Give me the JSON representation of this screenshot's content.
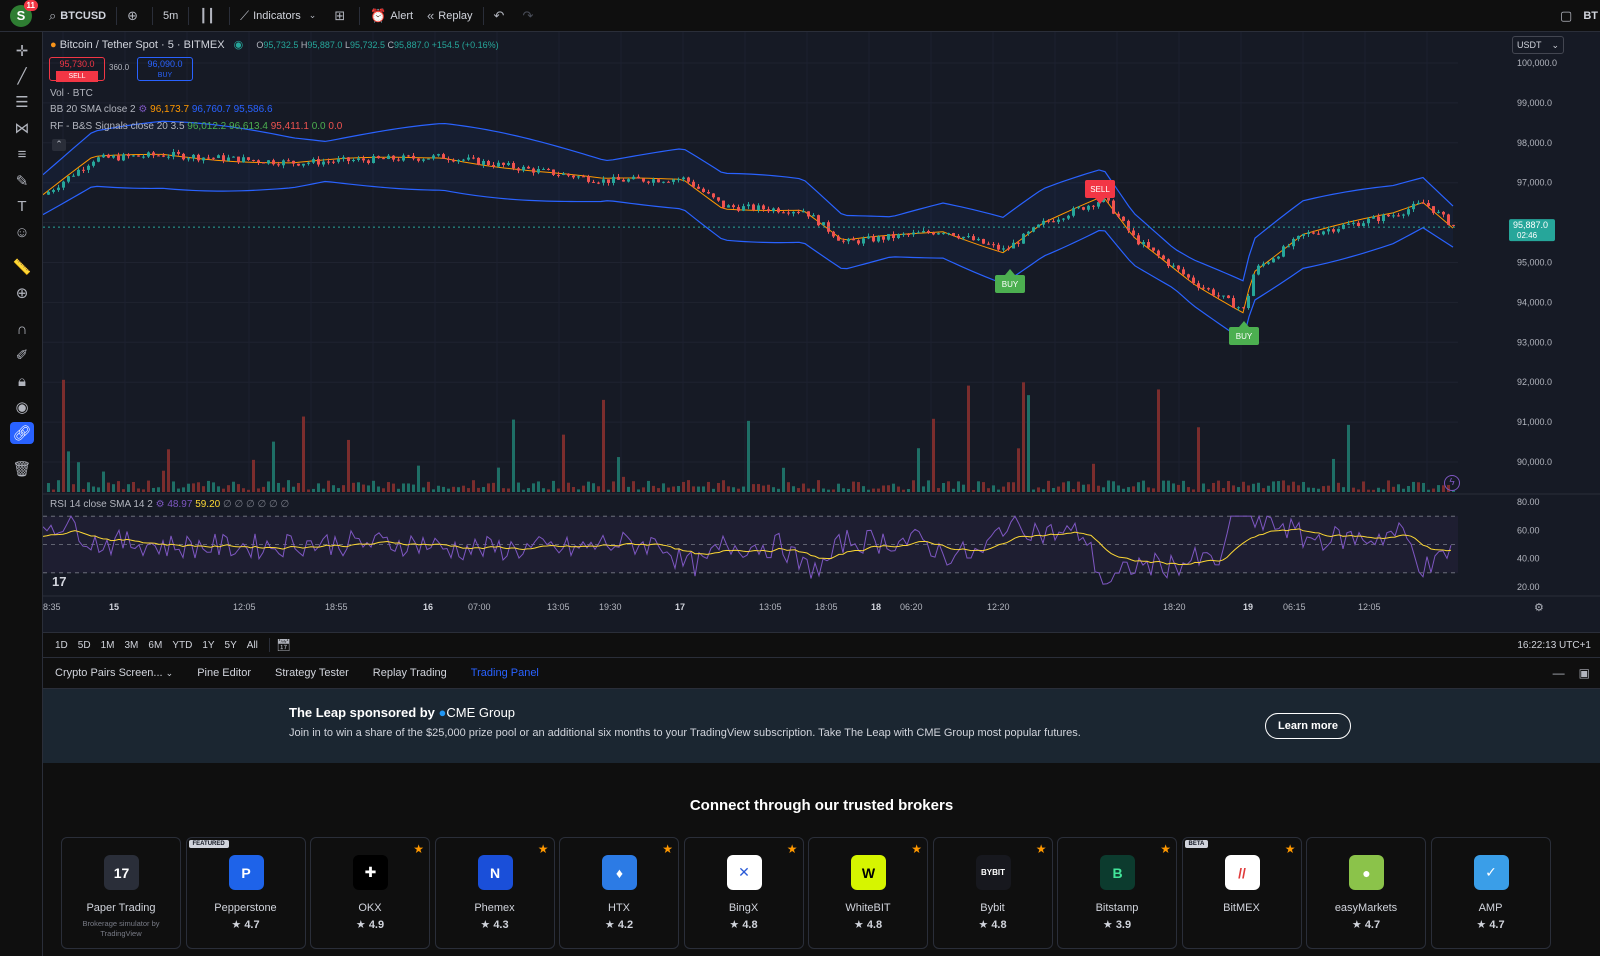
{
  "topbar": {
    "avatar_letter": "S",
    "notif_count": "11",
    "symbol": "BTCUSD",
    "interval": "5m",
    "indicators": "Indicators",
    "alert": "Alert",
    "replay": "Replay",
    "right_text": "BT"
  },
  "legend": {
    "title": "Bitcoin / Tether Spot · 5 · BITMEX",
    "o_label": "O",
    "o_val": "95,732.5",
    "h_label": "H",
    "h_val": "95,887.0",
    "l_label": "L",
    "l_val": "95,732.5",
    "c_label": "C",
    "c_val": "95,887.0",
    "change": "+154.5 (+0.16%)",
    "sell_price": "95,730.0",
    "sell_label": "SELL",
    "spread": "360.0",
    "buy_price": "96,090.0",
    "buy_label": "BUY",
    "vol": "Vol · BTC",
    "bb_label": "BB 20 SMA close 2",
    "bb_v1": "96,173.7",
    "bb_v2": "96,760.7",
    "bb_v3": "95,586.6",
    "rf_label": "RF - B&S Signals close 20 3.5",
    "rf_v1": "96,012.2",
    "rf_v2": "96,613.4",
    "rf_v3": "95,411.1",
    "rf_v4": "0.0",
    "rf_v5": "0.0",
    "rsi_label": "RSI 14 close SMA 14 2",
    "rsi_v1": "48.97",
    "rsi_v2": "59.20",
    "rsi_na": "∅ ∅ ∅ ∅ ∅ ∅"
  },
  "currency": "USDT",
  "price_axis": [
    "100,000.0",
    "99,000.0",
    "98,000.0",
    "97,000.0",
    "95,000.0",
    "94,000.0",
    "93,000.0",
    "92,000.0",
    "91,000.0",
    "90,000.0"
  ],
  "last_price": "95,887.0",
  "countdown": "02:46",
  "rsi_axis": [
    "80.00",
    "60.00",
    "40.00",
    "20.00"
  ],
  "time_axis": [
    "8:35",
    "15",
    "12:05",
    "18:55",
    "16",
    "07:00",
    "13:05",
    "19:30",
    "17",
    "13:05",
    "18:05",
    "18",
    "06:20",
    "12:20",
    "18:20",
    "19",
    "06:15",
    "12:05"
  ],
  "signals": {
    "sell": "SELL",
    "buy": "BUY"
  },
  "timeframes": [
    "1D",
    "5D",
    "1M",
    "3M",
    "6M",
    "YTD",
    "1Y",
    "5Y",
    "All"
  ],
  "clock": "16:22:13 UTC+1",
  "panel_tabs": [
    "Crypto Pairs Screen...",
    "Pine Editor",
    "Strategy Tester",
    "Replay Trading",
    "Trading Panel"
  ],
  "banner": {
    "title_prefix": "The Leap sponsored by",
    "sponsor": "CME Group",
    "desc": "Join in to win a share of the $25,000 prize pool or an additional six months to your TradingView subscription. Take The Leap with CME Group most popular futures.",
    "cta": "Learn more"
  },
  "brokers_title": "Connect through our trusted brokers",
  "brokers": [
    {
      "name": "Paper Trading",
      "sub": "Brokerage simulator by TradingView",
      "rating": "",
      "tag": "",
      "color": "#2a2e39",
      "fg": "#ffffff",
      "glyph": "17",
      "fav": false
    },
    {
      "name": "Pepperstone",
      "rating": "4.7",
      "tag": "FEATURED",
      "color": "#1e63e9",
      "fg": "#ffffff",
      "glyph": "P",
      "fav": false
    },
    {
      "name": "OKX",
      "rating": "4.9",
      "tag": "",
      "color": "#000000",
      "fg": "#ffffff",
      "glyph": "✚",
      "fav": true
    },
    {
      "name": "Phemex",
      "rating": "4.3",
      "tag": "",
      "color": "#1a4fd9",
      "fg": "#ffffff",
      "glyph": "N",
      "fav": true
    },
    {
      "name": "HTX",
      "rating": "4.2",
      "tag": "",
      "color": "#2c7be5",
      "fg": "#ffffff",
      "glyph": "♦",
      "fav": true
    },
    {
      "name": "BingX",
      "rating": "4.8",
      "tag": "",
      "color": "#ffffff",
      "fg": "#2b5bd7",
      "glyph": "✕",
      "fav": true
    },
    {
      "name": "WhiteBIT",
      "rating": "4.8",
      "tag": "",
      "color": "#d6f500",
      "fg": "#000000",
      "glyph": "W",
      "fav": true
    },
    {
      "name": "Bybit",
      "rating": "4.8",
      "tag": "",
      "color": "#17181e",
      "fg": "#ffffff",
      "glyph": "BYBIT",
      "fav": true
    },
    {
      "name": "Bitstamp",
      "rating": "3.9",
      "tag": "",
      "color": "#0c3b2e",
      "fg": "#42e59a",
      "glyph": "B",
      "fav": true
    },
    {
      "name": "BitMEX",
      "rating": "",
      "tag": "BETA",
      "color": "#ffffff",
      "fg": "#e03a3a",
      "glyph": "//",
      "fav": true
    },
    {
      "name": "easyMarkets",
      "rating": "4.7",
      "tag": "",
      "color": "#8bc34a",
      "fg": "#ffffff",
      "glyph": "●",
      "fav": false
    },
    {
      "name": "AMP",
      "rating": "4.7",
      "tag": "",
      "color": "#3a9ee8",
      "fg": "#ffffff",
      "glyph": "✓",
      "fav": false
    }
  ],
  "colors": {
    "up": "#26a69a",
    "down": "#ef5350",
    "accent": "#2962ff",
    "bb": "#2962ff",
    "rsi": "#7e57c2",
    "rsi_ma": "#fdd835"
  }
}
